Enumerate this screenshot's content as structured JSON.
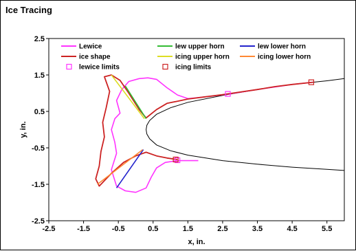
{
  "window": {
    "title": "Ice Tracing"
  },
  "chart_data": {
    "type": "line",
    "title": "",
    "xlabel": "x, in.",
    "ylabel": "y, in.",
    "xlim": [
      -2.5,
      6.0
    ],
    "ylim": [
      -2.5,
      2.5
    ],
    "xticks": [
      "-2.5",
      "-1.5",
      "-0.5",
      "0.5",
      "1.5",
      "2.5",
      "3.5",
      "4.5",
      "5.5"
    ],
    "yticks": [
      "2.5",
      "1.5",
      "0.5",
      "-0.5",
      "-1.5",
      "-2.5"
    ],
    "grid": false,
    "legend_position": "top",
    "colors": {
      "airfoil": "#000000",
      "lewice": "#ff33ff",
      "ice_shape": "#cc2222",
      "lew_upper_horn": "#33bb33",
      "lew_lower_horn": "#2222cc",
      "icing_upper_horn": "#dddd22",
      "icing_lower_horn": "#ff8833"
    },
    "airfoil": {
      "upper": [
        [
          0.3,
          0.0
        ],
        [
          0.32,
          0.12
        ],
        [
          0.4,
          0.25
        ],
        [
          0.6,
          0.42
        ],
        [
          1.0,
          0.6
        ],
        [
          1.5,
          0.75
        ],
        [
          2.5,
          0.94
        ],
        [
          3.5,
          1.1
        ],
        [
          4.5,
          1.24
        ],
        [
          5.5,
          1.34
        ],
        [
          6.0,
          1.4
        ]
      ],
      "lower": [
        [
          0.3,
          0.0
        ],
        [
          0.32,
          -0.12
        ],
        [
          0.4,
          -0.25
        ],
        [
          0.6,
          -0.42
        ],
        [
          1.0,
          -0.58
        ],
        [
          1.5,
          -0.7
        ],
        [
          2.5,
          -0.85
        ],
        [
          3.5,
          -0.95
        ],
        [
          4.5,
          -1.03
        ],
        [
          5.5,
          -1.09
        ],
        [
          6.0,
          -1.12
        ]
      ]
    },
    "series": [
      {
        "name": "Lewice",
        "style": "line",
        "color": "#ff33ff",
        "points": [
          [
            5.1,
            1.3
          ],
          [
            4.5,
            1.24
          ],
          [
            3.5,
            1.1
          ],
          [
            2.7,
            0.98
          ],
          [
            2.2,
            0.92
          ],
          [
            1.8,
            0.88
          ],
          [
            1.5,
            0.85
          ],
          [
            1.2,
            0.95
          ],
          [
            0.9,
            1.15
          ],
          [
            0.6,
            1.38
          ],
          [
            0.35,
            1.42
          ],
          [
            0.1,
            1.4
          ],
          [
            -0.2,
            1.32
          ],
          [
            -0.4,
            1.1
          ],
          [
            -0.55,
            0.8
          ],
          [
            -0.45,
            0.45
          ],
          [
            -0.6,
            0.3
          ],
          [
            -0.7,
            0.0
          ],
          [
            -0.6,
            -0.35
          ],
          [
            -0.55,
            -0.65
          ],
          [
            -0.7,
            -1.1
          ],
          [
            -0.55,
            -1.55
          ],
          [
            -0.3,
            -1.68
          ],
          [
            0.0,
            -1.72
          ],
          [
            0.3,
            -1.6
          ],
          [
            0.45,
            -1.3
          ],
          [
            0.6,
            -1.05
          ],
          [
            0.85,
            -0.9
          ],
          [
            1.2,
            -0.85
          ],
          [
            1.8,
            -0.85
          ]
        ]
      },
      {
        "name": "ice shape",
        "style": "line",
        "color": "#cc2222",
        "points": [
          [
            5.1,
            1.3
          ],
          [
            4.5,
            1.24
          ],
          [
            4.0,
            1.18
          ],
          [
            3.5,
            1.1
          ],
          [
            3.0,
            1.03
          ],
          [
            2.5,
            0.96
          ],
          [
            2.0,
            0.9
          ],
          [
            1.5,
            0.84
          ],
          [
            1.2,
            0.78
          ],
          [
            0.9,
            0.72
          ],
          [
            0.6,
            0.55
          ],
          [
            0.3,
            0.32
          ],
          [
            0.1,
            0.55
          ],
          [
            -0.2,
            1.0
          ],
          [
            -0.45,
            1.35
          ],
          [
            -0.7,
            1.5
          ],
          [
            -0.9,
            1.45
          ],
          [
            -0.75,
            1.05
          ],
          [
            -0.85,
            0.6
          ],
          [
            -0.95,
            0.2
          ],
          [
            -0.9,
            -0.2
          ],
          [
            -1.0,
            -0.6
          ],
          [
            -1.05,
            -1.0
          ],
          [
            -1.15,
            -1.35
          ],
          [
            -1.05,
            -1.55
          ],
          [
            -0.7,
            -1.2
          ],
          [
            -0.35,
            -0.9
          ],
          [
            0.0,
            -0.72
          ],
          [
            0.3,
            -0.62
          ],
          [
            0.6,
            -0.72
          ],
          [
            0.9,
            -0.78
          ],
          [
            1.2,
            -0.82
          ]
        ]
      },
      {
        "name": "lew upper horn",
        "style": "segment",
        "color": "#33bb33",
        "points": [
          [
            0.3,
            0.3
          ],
          [
            -0.3,
            1.2
          ]
        ]
      },
      {
        "name": "lew lower horn",
        "style": "segment",
        "color": "#2222cc",
        "points": [
          [
            0.22,
            -0.55
          ],
          [
            -0.55,
            -1.6
          ]
        ]
      },
      {
        "name": "icing upper horn",
        "style": "segment",
        "color": "#dddd22",
        "points": [
          [
            0.25,
            0.3
          ],
          [
            -0.7,
            1.5
          ]
        ]
      },
      {
        "name": "icing lower horn",
        "style": "segment",
        "color": "#ff8833",
        "points": [
          [
            0.2,
            -0.55
          ],
          [
            -1.1,
            -1.5
          ]
        ]
      },
      {
        "name": "lewice limits",
        "style": "marker",
        "color": "#ff33ff",
        "points": [
          [
            2.65,
            0.98
          ],
          [
            1.2,
            -0.84
          ]
        ]
      },
      {
        "name": "icing limits",
        "style": "marker",
        "color": "#cc2222",
        "points": [
          [
            5.05,
            1.3
          ],
          [
            1.15,
            -0.82
          ]
        ]
      }
    ],
    "legend": [
      {
        "label": "Lewice",
        "kind": "line",
        "color": "#ff33ff"
      },
      {
        "label": "lew upper horn",
        "kind": "line",
        "color": "#33bb33"
      },
      {
        "label": "lew lower horn",
        "kind": "line",
        "color": "#2222cc"
      },
      {
        "label": "ice shape",
        "kind": "line",
        "color": "#cc2222"
      },
      {
        "label": "icing upper horn",
        "kind": "line",
        "color": "#dddd22"
      },
      {
        "label": "icing lower horn",
        "kind": "line",
        "color": "#ff8833"
      },
      {
        "label": "lewice limits",
        "kind": "marker",
        "color": "#ff33ff"
      },
      {
        "label": "icing limits",
        "kind": "marker",
        "color": "#cc2222"
      }
    ]
  }
}
